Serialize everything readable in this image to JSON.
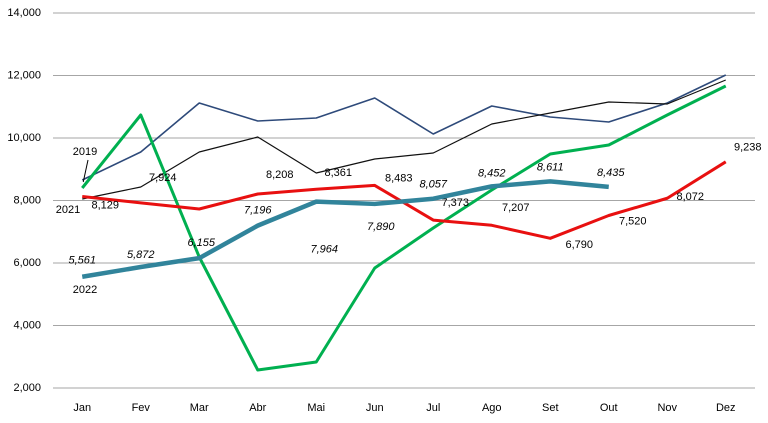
{
  "chart_data": {
    "type": "line",
    "categories": [
      "Jan",
      "Fev",
      "Mar",
      "Abr",
      "Mai",
      "Jun",
      "Jul",
      "Ago",
      "Set",
      "Out",
      "Nov",
      "Dez"
    ],
    "ylim": [
      2000,
      14000
    ],
    "yticks": [
      {
        "value": 2000,
        "label": "2,000"
      },
      {
        "value": 4000,
        "label": "4,000"
      },
      {
        "value": 6000,
        "label": "6,000"
      },
      {
        "value": 8000,
        "label": "8,000"
      },
      {
        "value": 10000,
        "label": "10,000"
      },
      {
        "value": 12000,
        "label": "12,000"
      },
      {
        "value": 14000,
        "label": "14,000"
      }
    ],
    "grid": true,
    "series": [
      {
        "name": "2019",
        "color": "#2e4a7a",
        "values": [
          8656,
          9552,
          11120,
          10544,
          10640,
          11280,
          10128,
          11024,
          10672,
          10512,
          11120,
          12016
        ]
      },
      {
        "color": "#111111",
        "values": [
          8048,
          8432,
          9552,
          10032,
          8880,
          9328,
          9520,
          10448,
          10800,
          11152,
          11088,
          11856
        ]
      },
      {
        "color": "#00b050",
        "values": [
          8400,
          10736,
          6192,
          2576,
          2832,
          5840,
          7120,
          8336,
          9488,
          9776,
          10736,
          11664
        ]
      },
      {
        "name": "2021",
        "color": "#e81010",
        "values": [
          8129,
          7924,
          7728,
          8208,
          8361,
          8483,
          7373,
          7207,
          6790,
          7520,
          8072,
          9238
        ],
        "value_labels": [
          "8,129",
          "7,924",
          null,
          "8,208",
          "8,361",
          "8,483",
          "7,373",
          "7,207",
          "6,790",
          "7,520",
          "8,072",
          "9,238"
        ]
      },
      {
        "name": "2022",
        "color": "#31849b",
        "values": [
          5561,
          5872,
          6155,
          7196,
          7964,
          7890,
          8057,
          8452,
          8611,
          8435,
          null,
          null
        ],
        "value_labels": [
          "5,561",
          "5,872",
          "6,155",
          "7,196",
          "7,964",
          "7,890",
          "8,057",
          "8,452",
          "8,611",
          "8,435",
          null,
          null
        ]
      }
    ]
  }
}
